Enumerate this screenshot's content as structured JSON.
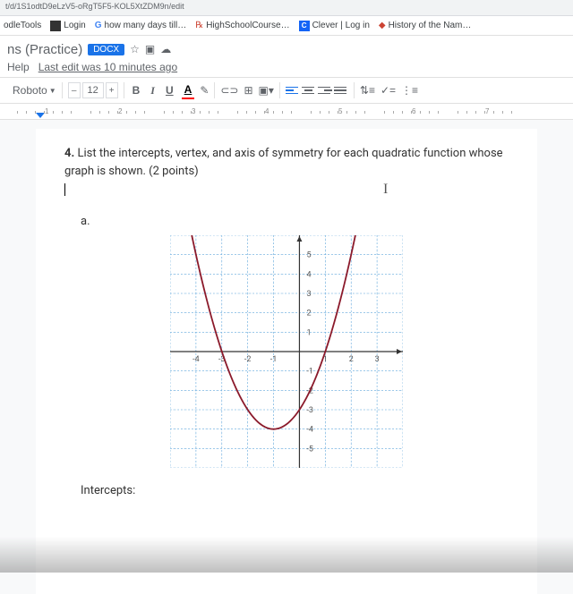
{
  "url_fragment": "t/d/1S1odtD9eLzV5-oRgT5F5-KOL5XtZDM9n/edit",
  "bookmarks": [
    {
      "label": "odleTools",
      "icon": ""
    },
    {
      "label": "Login",
      "icon": "■"
    },
    {
      "label": "how many days till…",
      "icon": "G"
    },
    {
      "label": "HighSchoolCourse…",
      "icon": "℞"
    },
    {
      "label": "Clever | Log in",
      "icon": "C"
    },
    {
      "label": "History of the Nam…",
      "icon": "◆"
    }
  ],
  "doc": {
    "title_suffix": "ns (Practice)",
    "docx": "DOCX",
    "menu_help": "Help",
    "last_edit": "Last edit was 10 minutes ago"
  },
  "toolbar": {
    "font": "Roboto",
    "size": "12",
    "minus": "–",
    "plus": "+",
    "bold": "B",
    "italic": "I",
    "underline": "U"
  },
  "ruler": {
    "marks": [
      "1",
      "2",
      "3",
      "4",
      "5",
      "6",
      "7"
    ]
  },
  "question": {
    "num": "4.",
    "text": "List the intercepts, vertex, and axis of symmetry for each quadratic function whose graph is shown. (2 points)",
    "part": "a.",
    "intercepts_label": "Intercepts:"
  },
  "chart": {
    "type": "parabola",
    "xlim": [
      -5,
      4
    ],
    "ylim": [
      -6,
      6
    ],
    "xticks": [
      -4,
      -3,
      -2,
      -1,
      1,
      2,
      3
    ],
    "yticks": [
      -5,
      -4,
      -3,
      -2,
      -1,
      1,
      2,
      3,
      4,
      5
    ],
    "background": "#ffffff",
    "grid_color": "#66aadd",
    "grid_minor_color": "#b8d6ee",
    "axis_color": "#333333",
    "curve_color": "#8b1a2b",
    "curve_width": 1.8,
    "vertex": [
      -1,
      -4
    ],
    "x_intercepts": [
      -3,
      1
    ],
    "a": 1,
    "label_fontsize": 9,
    "label_color": "#555555"
  }
}
